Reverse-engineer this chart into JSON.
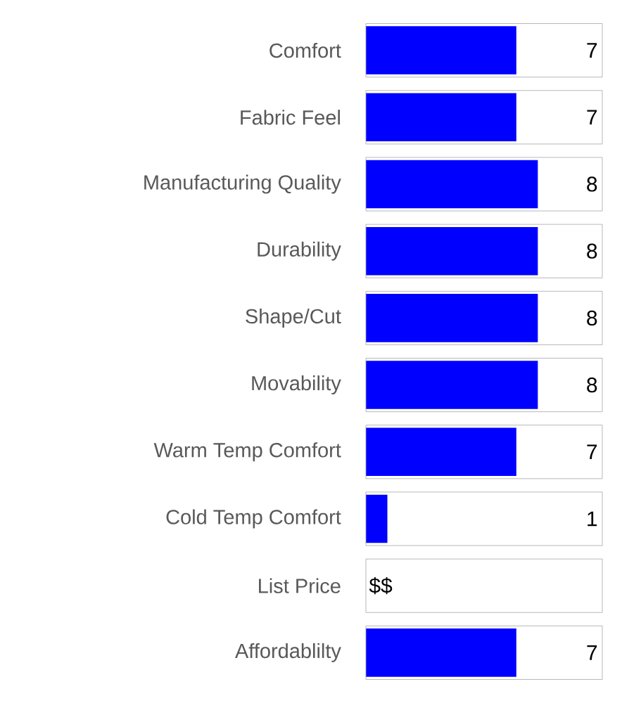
{
  "chart_data": {
    "type": "bar",
    "orientation": "horizontal",
    "categories": [
      "Comfort",
      "Fabric Feel",
      "Manufacturing Quality",
      "Durability",
      "Shape/Cut",
      "Movability",
      "Warm Temp Comfort",
      "Cold Temp Comfort",
      "List Price",
      "Affordablilty"
    ],
    "values": [
      7,
      7,
      8,
      8,
      8,
      8,
      7,
      1,
      null,
      7
    ],
    "value_labels": [
      "7",
      "7",
      "8",
      "8",
      "8",
      "8",
      "7",
      "1",
      "$$",
      "7"
    ],
    "color": "#0000ff",
    "xlim": [
      0,
      11
    ],
    "tick_labels": "y",
    "grid": false
  }
}
